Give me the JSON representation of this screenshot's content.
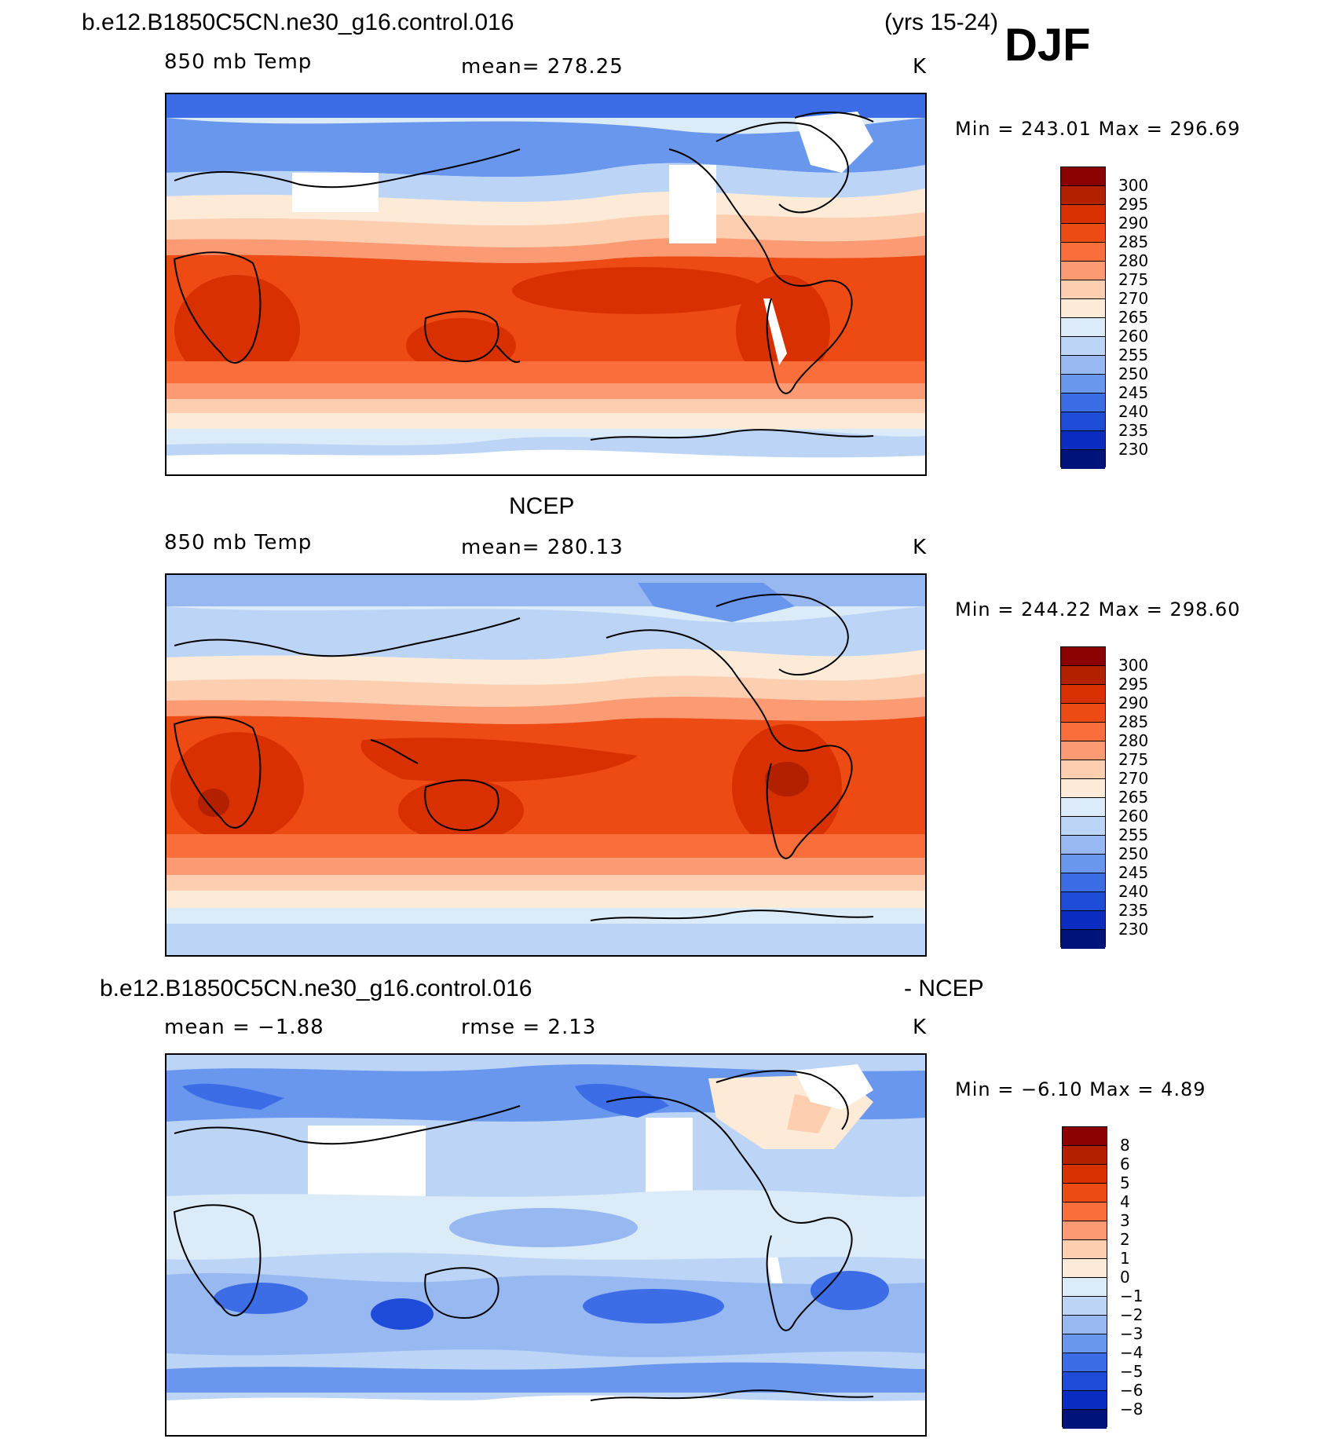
{
  "header": {
    "case_name": "b.e12.B1850C5CN.ne30_g16.control.016",
    "years": "(yrs 15-24)",
    "season": "DJF"
  },
  "panels": [
    {
      "title": "",
      "variable": "850 mb Temp",
      "stat": "mean=  278.25",
      "units": "K",
      "minmax": "Min  =  243.01  Max  =  296.69",
      "colorbar_labels": [
        "300",
        "295",
        "290",
        "285",
        "280",
        "275",
        "270",
        "265",
        "260",
        "255",
        "250",
        "245",
        "240",
        "235",
        "230"
      ]
    },
    {
      "title": "NCEP",
      "variable": "850 mb Temp",
      "stat": "mean=  280.13",
      "units": "K",
      "minmax": "Min  =  244.22  Max  =  298.60",
      "colorbar_labels": [
        "300",
        "295",
        "290",
        "285",
        "280",
        "275",
        "270",
        "265",
        "260",
        "255",
        "250",
        "245",
        "240",
        "235",
        "230"
      ]
    },
    {
      "title": "b.e12.B1850C5CN.ne30_g16.control.016",
      "title_right": "- NCEP",
      "variable": "mean  =    −1.88",
      "stat": "rmse  =     2.13",
      "units": "K",
      "minmax": "Min  =    −6.10  Max  =      4.89",
      "colorbar_labels": [
        "8",
        "6",
        "5",
        "4",
        "3",
        "2",
        "1",
        "0",
        "−1",
        "−2",
        "−3",
        "−4",
        "−5",
        "−6",
        "−8"
      ]
    }
  ],
  "colors": {
    "palette": [
      "#8b0000",
      "#b22000",
      "#d83000",
      "#ee4b14",
      "#fa6e3c",
      "#fc9b73",
      "#fdcfb0",
      "#fdebd8",
      "#dcebf8",
      "#bcd4f6",
      "#98b8f2",
      "#6a97ee",
      "#3c6de6",
      "#1e4cd8",
      "#0a2cc0",
      "#041890",
      "#00137a"
    ]
  }
}
